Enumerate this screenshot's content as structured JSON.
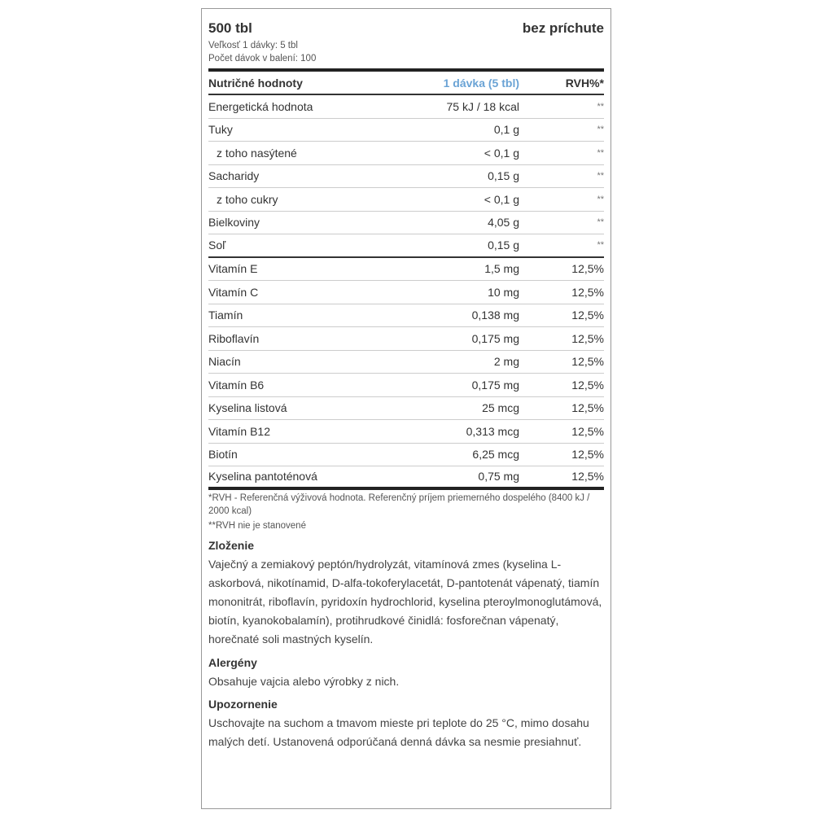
{
  "header": {
    "package": "500 tbl",
    "flavor": "bez príchute",
    "serving_size": "Veľkosť 1 dávky: 5 tbl",
    "servings": "Počet dávok v balení: 100"
  },
  "table": {
    "headers": [
      "Nutričné hodnoty",
      "1 dávka (5 tbl)",
      "RVH%*"
    ],
    "rows": [
      {
        "name": "Energetická hodnota",
        "value": "75 kJ / 18 kcal",
        "rvh": "**"
      },
      {
        "name": "Tuky",
        "value": "0,1 g",
        "rvh": "**"
      },
      {
        "name": "z toho nasýtené",
        "value": "< 0,1 g",
        "rvh": "**"
      },
      {
        "name": "Sacharidy",
        "value": "0,15 g",
        "rvh": "**"
      },
      {
        "name": "z toho cukry",
        "value": "< 0,1 g",
        "rvh": "**"
      },
      {
        "name": "Bielkoviny",
        "value": "4,05 g",
        "rvh": "**"
      },
      {
        "name": "Soľ",
        "value": "0,15 g",
        "rvh": "**"
      },
      {
        "name": "Vitamín E",
        "value": "1,5 mg",
        "rvh": "12,5%"
      },
      {
        "name": "Vitamín C",
        "value": "10 mg",
        "rvh": "12,5%"
      },
      {
        "name": "Tiamín",
        "value": "0,138 mg",
        "rvh": "12,5%"
      },
      {
        "name": "Riboflavín",
        "value": "0,175 mg",
        "rvh": "12,5%"
      },
      {
        "name": "Niacín",
        "value": "2 mg",
        "rvh": "12,5%"
      },
      {
        "name": "Vitamín B6",
        "value": "0,175 mg",
        "rvh": "12,5%"
      },
      {
        "name": "Kyselina listová",
        "value": "25 mcg",
        "rvh": "12,5%"
      },
      {
        "name": "Vitamín B12",
        "value": "0,313 mcg",
        "rvh": "12,5%"
      },
      {
        "name": "Biotín",
        "value": "6,25 mcg",
        "rvh": "12,5%"
      },
      {
        "name": "Kyselina pantoténová",
        "value": "0,75 mg",
        "rvh": "12,5%"
      }
    ]
  },
  "footnotes": [
    "*RVH - Referenčná výživová hodnota. Referenčný príjem priemerného dospelého (8400 kJ / 2000 kcal)",
    "**RVH nie je stanovené"
  ],
  "sections": [
    {
      "title": "Zloženie",
      "text": "Vaječný a zemiakový peptón/hydrolyzát, vitamínová zmes (kyselina L-askorbová, nikotínamid, D-alfa-tokoferylacetát, D-pantotenát vápenatý, tiamín mononitrát, riboflavín, pyridoxín hydrochlorid, kyselina pteroylmonoglutámová, biotín, kyanokobalamín), protihrudkové činidlá: fosforečnan vápenatý, horečnaté soli mastných kyselín."
    },
    {
      "title": "Alergény",
      "text": "Obsahuje vajcia alebo výrobky z nich."
    },
    {
      "title": "Upozornenie",
      "text": "Uschovajte na suchom a tmavom mieste pri teplote do 25 °C, mimo dosahu malých detí. Ustanovená odporúčaná denná dávka sa nesmie presiahnuť."
    }
  ],
  "colors": {
    "serving_header": "#6aa3d5"
  }
}
